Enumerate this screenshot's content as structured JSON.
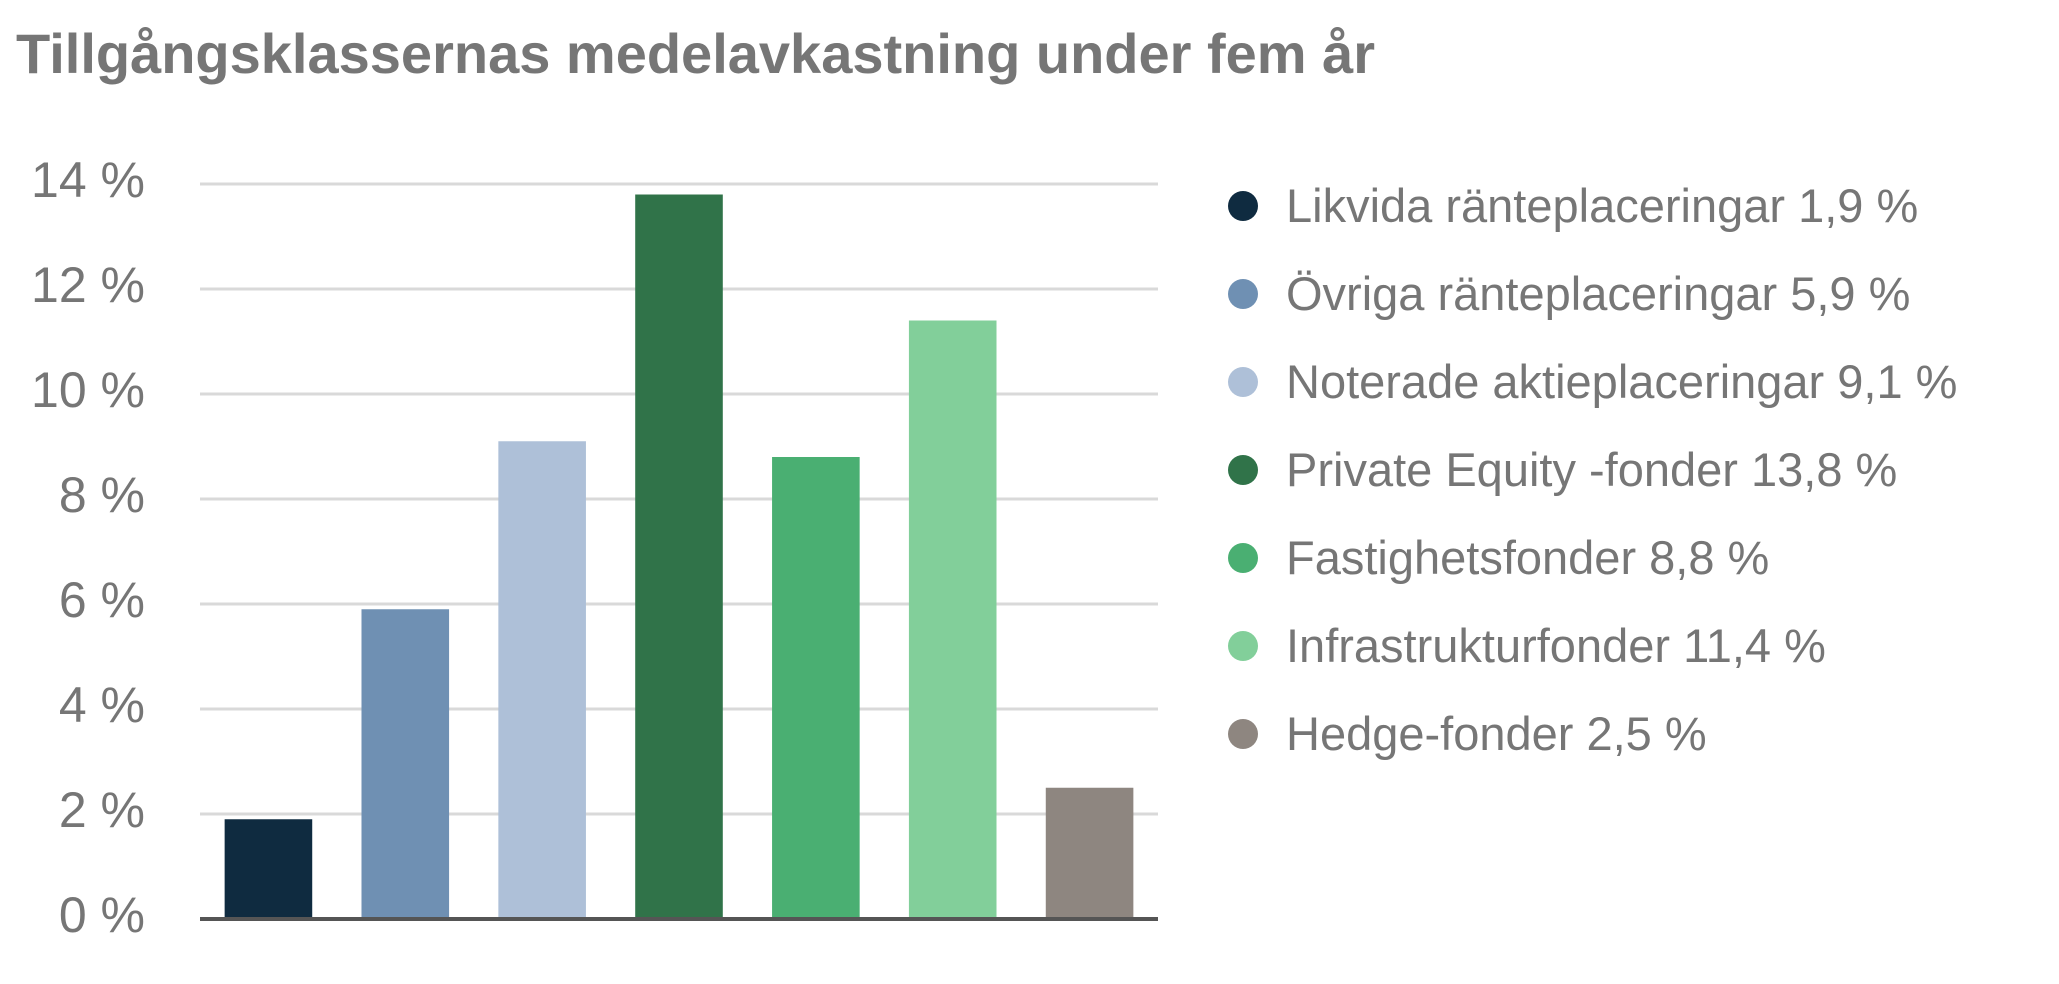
{
  "chart_data": {
    "type": "bar",
    "title": "Tillgångsklassernas medelavkastning under fem år",
    "series": [
      {
        "name": "Likvida ränteplaceringar 1,9 %",
        "color": "#0f2b40",
        "values": [
          1.9
        ]
      },
      {
        "name": "Övriga ränteplaceringar 5,9 %",
        "color": "#6f90b3",
        "values": [
          5.9
        ]
      },
      {
        "name": "Noterade aktieplaceringar 9,1 %",
        "color": "#aec0d8",
        "values": [
          9.1
        ]
      },
      {
        "name": "Private Equity -fonder 13,8 %",
        "color": "#307349",
        "values": [
          13.8
        ]
      },
      {
        "name": "Fastighetsfonder 8,8 %",
        "color": "#4aaf72",
        "values": [
          8.8
        ]
      },
      {
        "name": "Infrastrukturfonder 11,4 %",
        "color": "#82cf9a",
        "values": [
          11.4
        ]
      },
      {
        "name": "Hedge-fonder 2,5 %",
        "color": "#8e8680",
        "values": [
          2.5
        ]
      }
    ],
    "ylim": [
      0,
      14
    ],
    "yticks": [
      {
        "value": 0,
        "label": "0 %"
      },
      {
        "value": 2,
        "label": "2 %"
      },
      {
        "value": 4,
        "label": "4 %"
      },
      {
        "value": 6,
        "label": "6 %"
      },
      {
        "value": 8,
        "label": "8 %"
      },
      {
        "value": 10,
        "label": "10 %"
      },
      {
        "value": 12,
        "label": "12 %"
      },
      {
        "value": 14,
        "label": "14 %"
      }
    ],
    "grid": true,
    "legend": "right"
  }
}
